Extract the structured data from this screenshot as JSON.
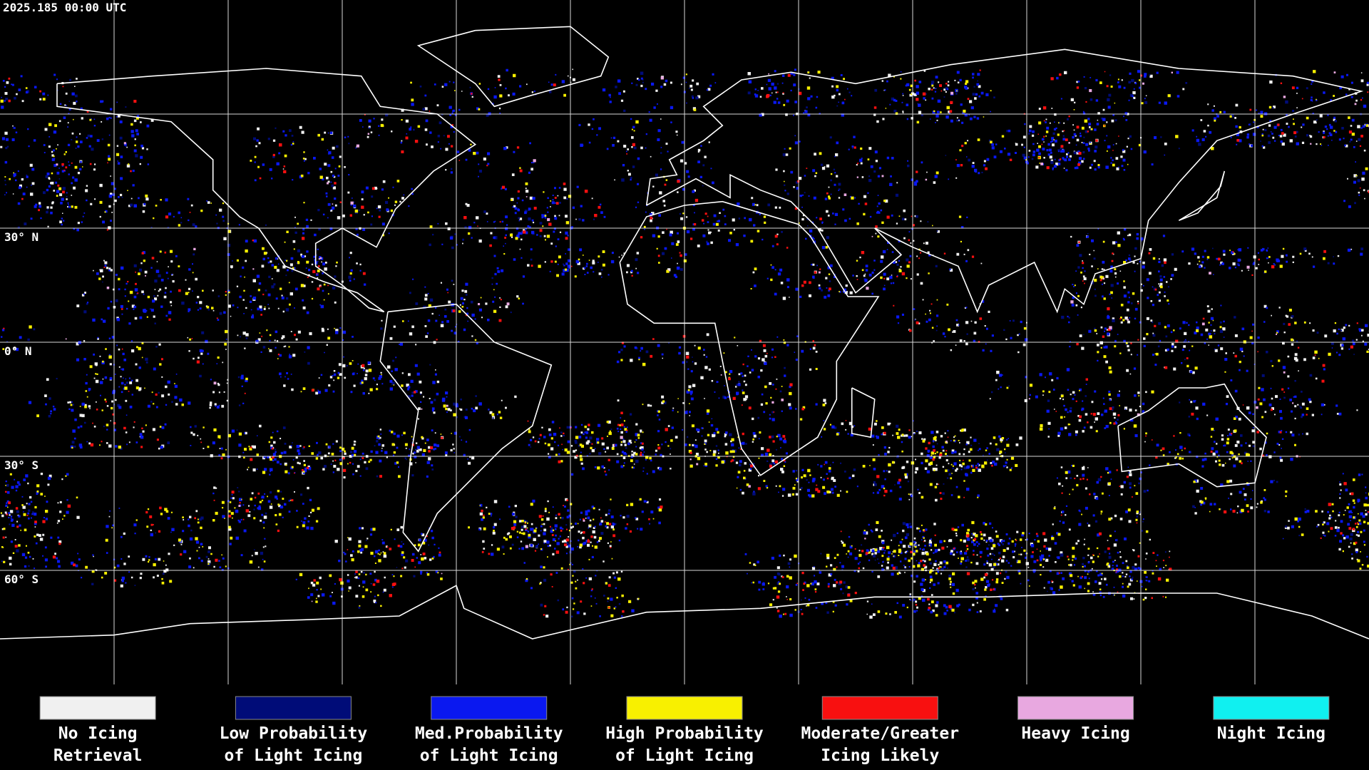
{
  "header": {
    "timestamp": "2025.185 00:00 UTC"
  },
  "latitude_labels": [
    {
      "text": "30° N",
      "lat": 30
    },
    {
      "text": "0° N",
      "lat": 0
    },
    {
      "text": "30° S",
      "lat": -30
    },
    {
      "text": "60° S",
      "lat": -60
    }
  ],
  "legend": [
    {
      "lines": [
        "No Icing",
        "Retrieval"
      ],
      "color": "#f0f0f0"
    },
    {
      "lines": [
        "Low Probability",
        "of Light Icing"
      ],
      "color": "#000c78"
    },
    {
      "lines": [
        "Med.Probability",
        "of Light Icing"
      ],
      "color": "#0a18f0"
    },
    {
      "lines": [
        "High Probability",
        "of Light Icing"
      ],
      "color": "#f8f000"
    },
    {
      "lines": [
        "Moderate/Greater",
        "Icing Likely"
      ],
      "color": "#f81010"
    },
    {
      "lines": [
        "Heavy Icing"
      ],
      "color": "#e8a8e0"
    },
    {
      "lines": [
        "Night Icing"
      ],
      "color": "#10f0f0"
    }
  ]
}
